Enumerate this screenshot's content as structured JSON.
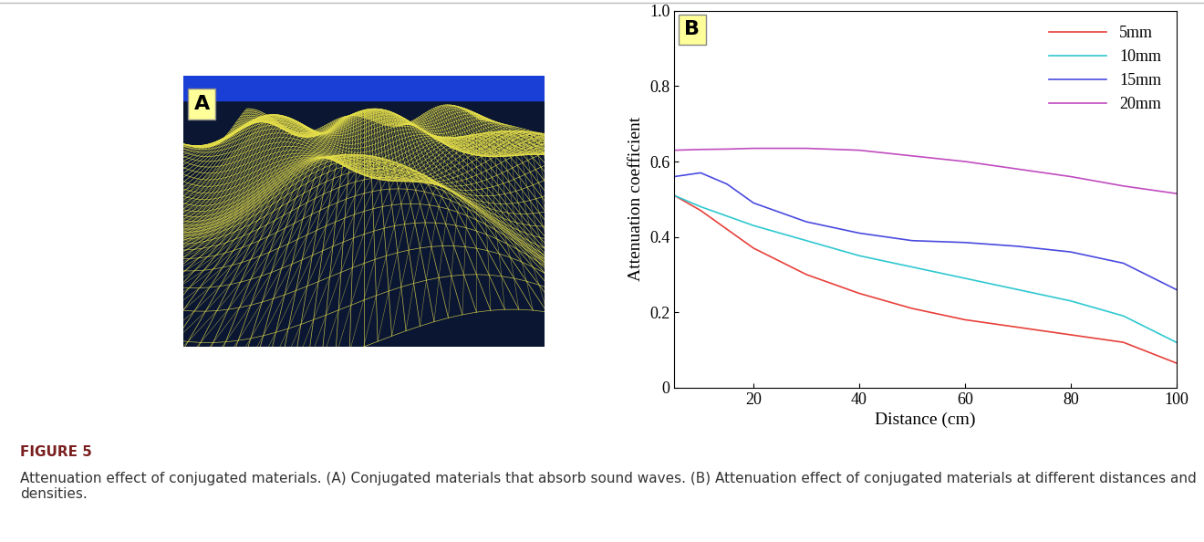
{
  "figure_label": "FIGURE 5",
  "caption": "Attenuation effect of conjugated materials. (A) Conjugated materials that absorb sound waves. (B) Attenuation effect of conjugated materials at different distances and densities.",
  "panels": [
    "A",
    "B"
  ],
  "chart_data": {
    "type": "line",
    "x_label": "Distance (cm)",
    "y_label": "Attenuation coefficient",
    "x": [
      5,
      10,
      15,
      20,
      30,
      40,
      50,
      60,
      70,
      80,
      90,
      100
    ],
    "series": [
      {
        "name": "5mm",
        "color": "#e8403a",
        "values": [
          0.51,
          0.47,
          0.42,
          0.37,
          0.3,
          0.25,
          0.21,
          0.18,
          0.16,
          0.14,
          0.12,
          0.065
        ]
      },
      {
        "name": "10mm",
        "color": "#2fc8d0",
        "values": [
          0.51,
          0.48,
          0.455,
          0.43,
          0.39,
          0.35,
          0.32,
          0.29,
          0.26,
          0.23,
          0.19,
          0.12
        ]
      },
      {
        "name": "15mm",
        "color": "#4a4ae0",
        "values": [
          0.56,
          0.57,
          0.54,
          0.49,
          0.44,
          0.41,
          0.39,
          0.385,
          0.375,
          0.36,
          0.33,
          0.26
        ]
      },
      {
        "name": "20mm",
        "color": "#c04cc0",
        "values": [
          0.63,
          0.632,
          0.633,
          0.635,
          0.635,
          0.63,
          0.615,
          0.6,
          0.58,
          0.56,
          0.535,
          0.515
        ]
      }
    ],
    "xlim": [
      5,
      100
    ],
    "xticks": [
      20,
      40,
      60,
      80,
      100
    ],
    "ylim": [
      0,
      1
    ],
    "yticks": [
      0,
      0.2,
      0.4,
      0.6,
      0.8,
      {
        "value": 1,
        "label": "1.0"
      }
    ],
    "legend": "upper right",
    "grid": false
  }
}
